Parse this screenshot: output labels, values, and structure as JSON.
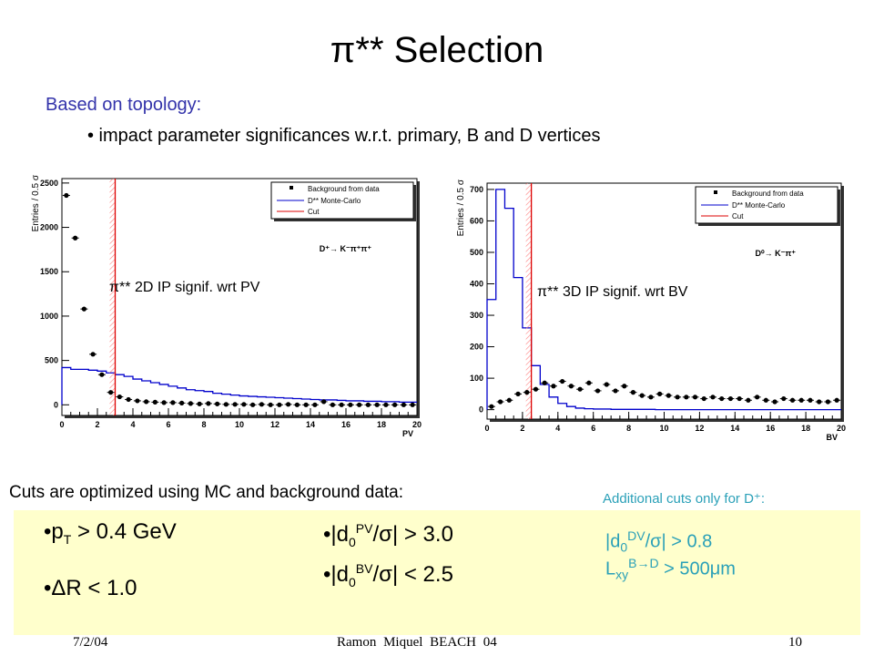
{
  "title": "π** Selection",
  "subtitle": "Based on topology:",
  "bullet": "• impact parameter significances w.r.t. primary, B and D vertices",
  "cuts_intro": "Cuts are optimized using MC and background data:",
  "additional_intro": "Additional cuts only for D⁺:",
  "cuts": {
    "pt": {
      "var": "p",
      "sub": "T",
      "rest": " > 0.4 GeV"
    },
    "dr": "•ΔR < 1.0",
    "pv": {
      "base": "|d",
      "sub": "0",
      "sup": "PV",
      "rest": "/σ|  > 3.0"
    },
    "bv": {
      "base": "|d",
      "sub": "0",
      "sup": "BV",
      "rest": "/σ|  < 2.5"
    },
    "dv": {
      "base": "|d",
      "sub": "0",
      "sup": "DV",
      "rest": "/σ| > 0.8"
    },
    "lxy": {
      "base": "L",
      "sub": "xy",
      "sup": "B→D",
      "rest": " > 500μm"
    }
  },
  "footer": {
    "date": "7/2/04",
    "author": "Ramon Miquel     BEACH 04",
    "page": "10"
  },
  "chart_data": [
    {
      "type": "line",
      "annotation": "π** 2D IP signif. wrt PV",
      "decay": "D⁺→ K⁻π⁺π⁺",
      "ylabel": "Entries / 0.5 σ",
      "xlabel": "PV",
      "xlim": [
        0,
        20
      ],
      "ylim": [
        -120,
        2550
      ],
      "xticks": [
        0,
        2,
        4,
        6,
        8,
        10,
        12,
        14,
        16,
        18,
        20
      ],
      "yticks": [
        0,
        500,
        1000,
        1500,
        2000,
        2500
      ],
      "cut": 3.0,
      "legend": [
        "Background from data",
        "D** Monte-Carlo",
        "Cut"
      ],
      "legend_placement": "top-right",
      "series": [
        {
          "name": "Background from data",
          "kind": "points",
          "x": [
            0.25,
            0.75,
            1.25,
            1.75,
            2.25,
            2.75,
            3.25,
            3.75,
            4.25,
            4.75,
            5.25,
            5.75,
            6.25,
            6.75,
            7.25,
            7.75,
            8.25,
            8.75,
            9.25,
            9.75,
            10.25,
            10.75,
            11.25,
            11.75,
            12.25,
            12.75,
            13.25,
            13.75,
            14.25,
            14.75,
            15.25,
            15.75,
            16.25,
            16.75,
            17.25,
            17.75,
            18.25,
            18.75,
            19.25,
            19.75
          ],
          "values": [
            2360,
            1880,
            1080,
            570,
            340,
            140,
            90,
            60,
            45,
            35,
            30,
            25,
            25,
            20,
            15,
            10,
            15,
            10,
            5,
            5,
            5,
            0,
            5,
            0,
            0,
            5,
            0,
            0,
            0,
            35,
            0,
            0,
            0,
            0,
            0,
            0,
            0,
            0,
            0,
            0
          ]
        },
        {
          "name": "D** Monte-Carlo",
          "kind": "step",
          "x": [
            0.25,
            0.75,
            1.25,
            1.75,
            2.25,
            2.75,
            3.25,
            3.75,
            4.25,
            4.75,
            5.25,
            5.75,
            6.25,
            6.75,
            7.25,
            7.75,
            8.25,
            8.75,
            9.25,
            9.75,
            10.25,
            10.75,
            11.25,
            11.75,
            12.25,
            12.75,
            13.25,
            13.75,
            14.25,
            14.75,
            15.25,
            15.75,
            16.25,
            16.75,
            17.25,
            17.75,
            18.25,
            18.75,
            19.25,
            19.75
          ],
          "values": [
            420,
            400,
            400,
            390,
            380,
            360,
            340,
            320,
            290,
            270,
            250,
            230,
            210,
            190,
            170,
            160,
            150,
            130,
            120,
            110,
            100,
            95,
            90,
            85,
            80,
            75,
            70,
            65,
            60,
            55,
            55,
            50,
            45,
            45,
            40,
            40,
            35,
            35,
            30,
            30
          ]
        }
      ]
    },
    {
      "type": "line",
      "annotation": "π** 3D IP signif. wrt BV",
      "decay": "D⁰→ K⁻π⁺",
      "ylabel": "Entries / 0.5 σ",
      "xlabel": "BV",
      "xlim": [
        0,
        20
      ],
      "ylim": [
        -30,
        720
      ],
      "xticks": [
        0,
        2,
        4,
        6,
        8,
        10,
        12,
        14,
        16,
        18,
        20
      ],
      "yticks": [
        0,
        100,
        200,
        300,
        400,
        500,
        600,
        700
      ],
      "cut": 2.5,
      "legend": [
        "Background from data",
        "D** Monte-Carlo",
        "Cut"
      ],
      "legend_placement": "top-right",
      "series": [
        {
          "name": "Background from data",
          "kind": "points",
          "x": [
            0.25,
            0.75,
            1.25,
            1.75,
            2.25,
            2.75,
            3.25,
            3.75,
            4.25,
            4.75,
            5.25,
            5.75,
            6.25,
            6.75,
            7.25,
            7.75,
            8.25,
            8.75,
            9.25,
            9.75,
            10.25,
            10.75,
            11.25,
            11.75,
            12.25,
            12.75,
            13.25,
            13.75,
            14.25,
            14.75,
            15.25,
            15.75,
            16.25,
            16.75,
            17.25,
            17.75,
            18.25,
            18.75,
            19.25,
            19.75
          ],
          "values": [
            10,
            25,
            30,
            50,
            55,
            65,
            85,
            75,
            90,
            75,
            65,
            85,
            60,
            80,
            60,
            75,
            55,
            45,
            40,
            50,
            45,
            40,
            40,
            40,
            35,
            40,
            35,
            35,
            35,
            30,
            40,
            30,
            25,
            35,
            30,
            30,
            30,
            25,
            25,
            30
          ]
        },
        {
          "name": "D** Monte-Carlo",
          "kind": "step",
          "x": [
            0.25,
            0.75,
            1.25,
            1.75,
            2.25,
            2.75,
            3.25,
            3.75,
            4.25,
            4.75,
            5.25,
            5.75,
            6.25,
            6.75,
            7.25,
            7.75,
            8.25,
            8.75,
            9.25,
            9.75,
            10.25,
            10.75,
            11.25,
            11.75,
            12.25,
            12.75,
            13.25,
            13.75,
            14.25,
            14.75,
            15.25,
            15.75,
            16.25,
            16.75,
            17.25,
            17.75,
            18.25,
            18.75,
            19.25,
            19.75
          ],
          "values": [
            350,
            700,
            640,
            420,
            260,
            140,
            80,
            40,
            20,
            10,
            5,
            3,
            2,
            2,
            1,
            1,
            1,
            1,
            1,
            0,
            0,
            0,
            0,
            0,
            0,
            0,
            0,
            0,
            0,
            0,
            0,
            0,
            0,
            0,
            0,
            0,
            0,
            0,
            0,
            0
          ]
        }
      ]
    }
  ]
}
